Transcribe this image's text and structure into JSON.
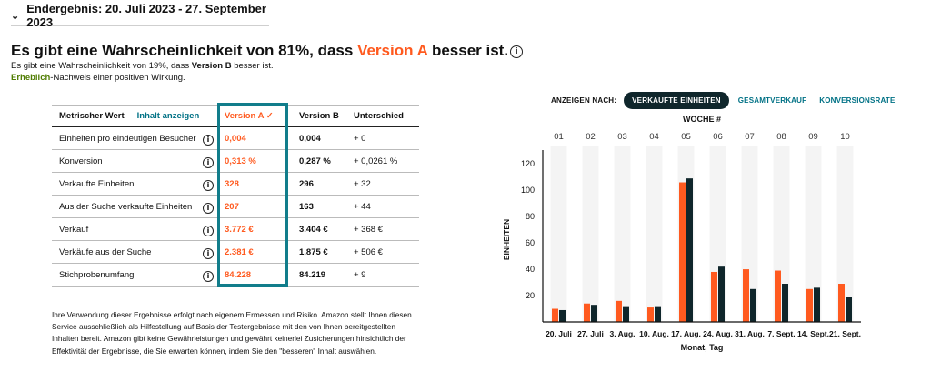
{
  "header": {
    "title": "Endergebnis: 20. Juli 2023 - 27. September 2023"
  },
  "result": {
    "headline_before": "Es gibt eine Wahrscheinlichkeit von 81%, dass ",
    "headline_version": "Version A",
    "headline_after": " besser ist.",
    "sub_before": "Es gibt eine Wahrscheinlichkeit von 19%, dass ",
    "sub_version": "Version B",
    "sub_after": " besser ist.",
    "significance_word": "Erheblich",
    "significance_rest": "-Nachweis einer positiven Wirkung."
  },
  "table": {
    "col_metric": "Metrischer Wert",
    "show_content": "Inhalt anzeigen",
    "col_a": "Version A",
    "col_b": "Version B",
    "col_diff": "Unterschied",
    "rows": [
      {
        "metric": "Einheiten pro eindeutigen Besucher",
        "a": "0,004",
        "b": "0,004",
        "diff": "+ 0"
      },
      {
        "metric": "Konversion",
        "a": "0,313 %",
        "b": "0,287 %",
        "diff": "+ 0,0261 %"
      },
      {
        "metric": "Verkaufte Einheiten",
        "a": "328",
        "b": "296",
        "diff": "+ 32"
      },
      {
        "metric": "Aus der Suche verkaufte Einheiten",
        "a": "207",
        "b": "163",
        "diff": "+ 44"
      },
      {
        "metric": "Verkauf",
        "a": "3.772 €",
        "b": "3.404 €",
        "diff": "+ 368 €"
      },
      {
        "metric": "Verkäufe aus der Suche",
        "a": "2.381 €",
        "b": "1.875 €",
        "diff": "+ 506 €"
      },
      {
        "metric": "Stichprobenumfang",
        "a": "84.228",
        "b": "84.219",
        "diff": "+ 9"
      }
    ]
  },
  "disclaimer": "Ihre Verwendung dieser Ergebnisse erfolgt nach eigenem Ermessen und Risiko. Amazon stellt Ihnen diesen Service ausschließlich als Hilfestellung auf Basis der Testergebnisse mit den von Ihnen bereitgestellten Inhalten bereit. Amazon gibt keine Gewährleistungen und gewährt keinerlei Zusicherungen hinsichtlich der Effektivität der Ergebnisse, die Sie erwarten können, indem Sie den \"besseren\" Inhalt auswählen.",
  "view": {
    "label": "ANZEIGEN NACH:",
    "options": [
      "VERKAUFTE EINHEITEN",
      "GESAMTVERKAUF",
      "KONVERSIONSRATE"
    ],
    "selected": "VERKAUFTE EINHEITEN"
  },
  "colors": {
    "version_a": "#ff5a1f",
    "version_b": "#0f262b",
    "accent": "#117d8b",
    "week_band": "#f4f4f4"
  },
  "chart_data": {
    "type": "bar",
    "top_label": "WOCHE #",
    "weeks": [
      "01",
      "02",
      "03",
      "04",
      "05",
      "06",
      "07",
      "08",
      "09",
      "10"
    ],
    "categories": [
      "20. Juli",
      "27. Juli",
      "3. Aug.",
      "10. Aug.",
      "17. Aug.",
      "24. Aug.",
      "31. Aug.",
      "7. Sept.",
      "14. Sept.",
      "21. Sept."
    ],
    "series": [
      {
        "name": "Version A",
        "values": [
          10,
          14,
          16,
          11,
          106,
          38,
          40,
          39,
          25,
          29
        ]
      },
      {
        "name": "Version B",
        "values": [
          9,
          13,
          12,
          12,
          109,
          42,
          25,
          29,
          26,
          19
        ]
      }
    ],
    "ylabel": "EINHEITEN",
    "xlabel": "Monat, Tag",
    "yticks": [
      20,
      40,
      60,
      80,
      100,
      120
    ],
    "ylim": [
      0,
      125
    ],
    "grid": false
  }
}
